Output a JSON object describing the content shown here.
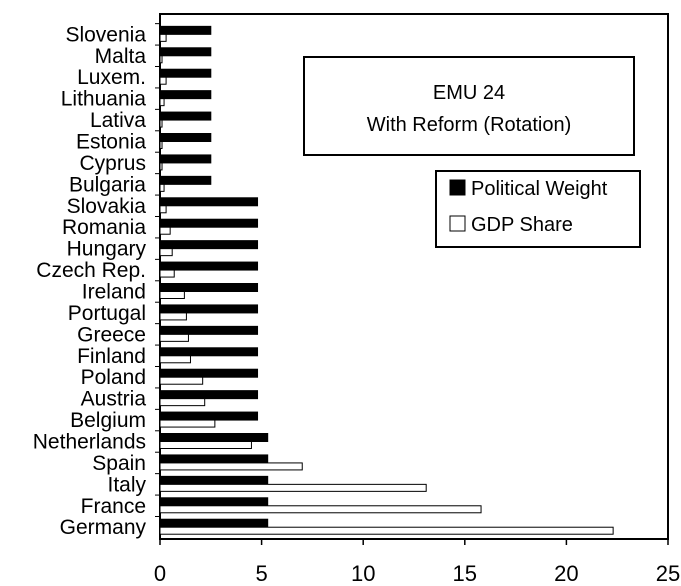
{
  "chart_data": {
    "type": "bar",
    "orientation": "horizontal",
    "title": [
      "EMU 24",
      "With Reform (Rotation)"
    ],
    "xlabel": "",
    "ylabel": "",
    "xlim": [
      0,
      25
    ],
    "x_ticks": [
      0,
      5,
      10,
      15,
      20,
      25
    ],
    "grid": false,
    "legend_position": "right",
    "categories": [
      "Slovenia",
      "Malta",
      "Luxem.",
      "Lithuania",
      "Lativa",
      "Estonia",
      "Cyprus",
      "Bulgaria",
      "Slovakia",
      "Romania",
      "Hungary",
      "Czech Rep.",
      "Ireland",
      "Portugal",
      "Greece",
      "Finland",
      "Poland",
      "Austria",
      "Belgium",
      "Netherlands",
      "Spain",
      "Italy",
      "France",
      "Germany"
    ],
    "series": [
      {
        "name": "Political Weight",
        "color": "#000000",
        "values": [
          2.5,
          2.5,
          2.5,
          2.5,
          2.5,
          2.5,
          2.5,
          2.5,
          4.8,
          4.8,
          4.8,
          4.8,
          4.8,
          4.8,
          4.8,
          4.8,
          4.8,
          4.8,
          4.8,
          5.3,
          5.3,
          5.3,
          5.3,
          5.3
        ]
      },
      {
        "name": "GDP Share",
        "color": "#ffffff",
        "values": [
          0.3,
          0.1,
          0.3,
          0.2,
          0.1,
          0.1,
          0.1,
          0.2,
          0.3,
          0.5,
          0.6,
          0.7,
          1.2,
          1.3,
          1.4,
          1.5,
          2.1,
          2.2,
          2.7,
          4.5,
          7.0,
          13.1,
          15.8,
          22.3
        ]
      }
    ]
  }
}
